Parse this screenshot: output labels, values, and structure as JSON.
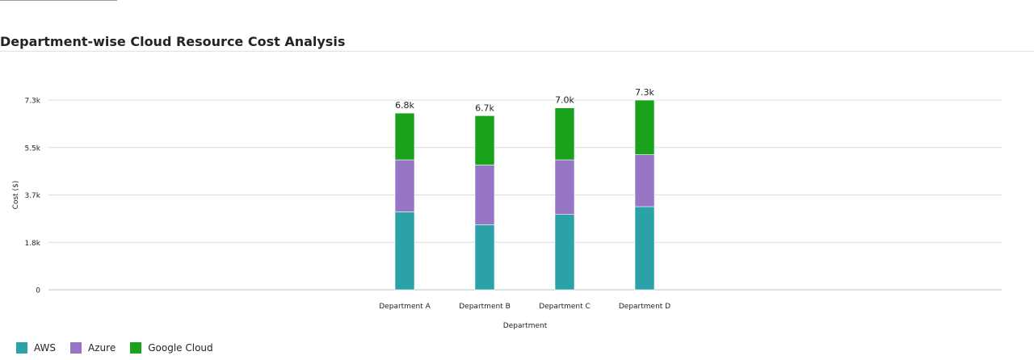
{
  "title": "Department-wise Cloud Resource Cost Analysis",
  "chart_data": {
    "type": "bar",
    "stacked": true,
    "title": "Department-wise Cloud Resource Cost Analysis",
    "xlabel": "Department",
    "ylabel": "Cost ($)",
    "categories": [
      "Department A",
      "Department B",
      "Department C",
      "Department D"
    ],
    "series": [
      {
        "name": "AWS",
        "color": "#2ba1a8",
        "values": [
          3000,
          2500,
          2900,
          3200
        ]
      },
      {
        "name": "Azure",
        "color": "#9575c4",
        "values": [
          2000,
          2300,
          2100,
          2000
        ]
      },
      {
        "name": "Google Cloud",
        "color": "#1ba21c",
        "values": [
          1800,
          1900,
          2000,
          2100
        ]
      }
    ],
    "totals": [
      6800,
      6700,
      7000,
      7300
    ],
    "total_labels": [
      "6.8k",
      "6.7k",
      "7.0k",
      "7.3k"
    ],
    "yticks": [
      0,
      1825,
      3650,
      5475,
      7300
    ],
    "ytick_labels": [
      "0",
      "1.8k",
      "3.7k",
      "5.5k",
      "7.3k"
    ],
    "ylim": [
      0,
      7300
    ],
    "grid": true,
    "legend_position": "bottom-left"
  }
}
